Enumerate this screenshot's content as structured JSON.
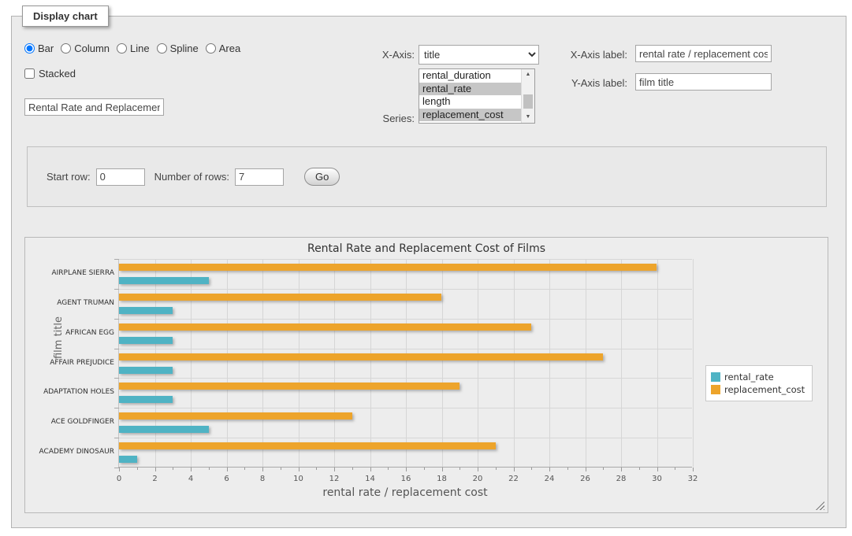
{
  "panel": {
    "legend": "Display chart"
  },
  "chart_types": {
    "options": [
      "Bar",
      "Column",
      "Line",
      "Spline",
      "Area"
    ],
    "selected": "Bar"
  },
  "stacked": {
    "label": "Stacked",
    "checked": false
  },
  "title_input": {
    "value": "Rental Rate and Replacement Cost of Films"
  },
  "x_axis": {
    "label": "X-Axis:",
    "selected": "title"
  },
  "series_select": {
    "label": "Series:",
    "options": [
      {
        "label": "rental_duration",
        "selected": false
      },
      {
        "label": "rental_rate",
        "selected": true
      },
      {
        "label": "length",
        "selected": false
      },
      {
        "label": "replacement_cost",
        "selected": true
      }
    ]
  },
  "x_axis_label": {
    "label": "X-Axis label:",
    "value": "rental rate / replacement cost"
  },
  "y_axis_label": {
    "label": "Y-Axis label:",
    "value": "film title"
  },
  "rows_panel": {
    "start_row_label": "Start row:",
    "start_row_value": "0",
    "num_rows_label": "Number of rows:",
    "num_rows_value": "7",
    "go_label": "Go"
  },
  "chart_data": {
    "type": "bar",
    "title": "Rental Rate and Replacement Cost of Films",
    "categories": [
      "AIRPLANE SIERRA",
      "AGENT TRUMAN",
      "AFRICAN EGG",
      "AFFAIR PREJUDICE",
      "ADAPTATION HOLES",
      "ACE GOLDFINGER",
      "ACADEMY DINOSAUR"
    ],
    "series": [
      {
        "name": "rental_rate",
        "color": "#4FB3C4",
        "values": [
          4.99,
          2.99,
          2.99,
          2.99,
          2.99,
          4.99,
          0.99
        ]
      },
      {
        "name": "replacement_cost",
        "color": "#EDA42B",
        "values": [
          29.99,
          17.99,
          22.99,
          26.99,
          18.99,
          12.99,
          20.99
        ]
      }
    ],
    "xlabel": "rental rate / replacement cost",
    "ylabel": "film title",
    "xlim": [
      0,
      32
    ],
    "x_tick_step": 2,
    "x_minor_tick_step": 1,
    "grid": true,
    "legend_position": "right",
    "draw_order": "second series drawn above first in each category group"
  }
}
